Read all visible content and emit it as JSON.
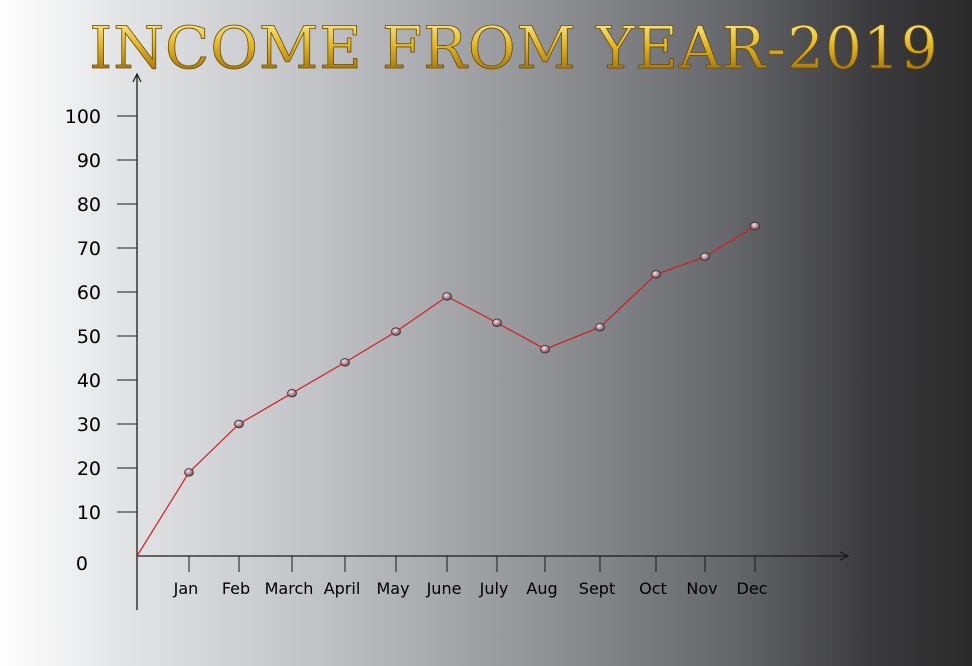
{
  "chart_data": {
    "type": "line",
    "title": "INCOME FROM YEAR-2019",
    "xlabel": "",
    "ylabel": "",
    "categories": [
      "Jan",
      "Feb",
      "March",
      "April",
      "May",
      "June",
      "July",
      "Aug",
      "Sept",
      "Oct",
      "Nov",
      "Dec"
    ],
    "series": [
      {
        "values": [
          19,
          30,
          37,
          44,
          51,
          59,
          53,
          47,
          52,
          64,
          68,
          75
        ]
      }
    ],
    "origin_point": {
      "x": "",
      "y": 0
    },
    "ylim": [
      0,
      100
    ],
    "yticks": [
      0,
      10,
      20,
      30,
      40,
      50,
      60,
      70,
      80,
      90,
      100
    ],
    "grid": false,
    "legend": "none",
    "colors": {
      "line": "#d21f1f",
      "marker": "#a06a74",
      "axis": "#1a1a1a",
      "title_gold": "#c9a227"
    }
  }
}
